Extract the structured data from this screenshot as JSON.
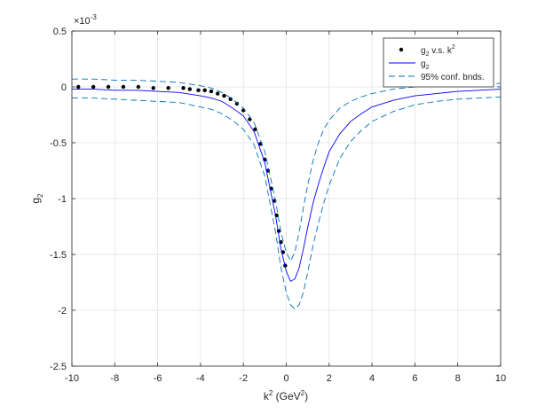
{
  "chart_data": {
    "type": "line",
    "xlabel_main": "k",
    "xlabel_sup": "2",
    "xlabel_rest": " (GeV",
    "xlabel_sup2": "2",
    "xlabel_close": ")",
    "ylabel_main": "g",
    "ylabel_sub": "2",
    "y_exponent_label": "×10",
    "y_exponent_power": "-3",
    "xlim": [
      -10,
      10
    ],
    "ylim": [
      -2.5,
      0.5
    ],
    "y_scale_factor": 0.001,
    "x_ticks": [
      -10,
      -8,
      -6,
      -4,
      -2,
      0,
      2,
      4,
      6,
      8,
      10
    ],
    "x_tick_labels": [
      "-10",
      "-8",
      "-6",
      "-4",
      "-2",
      "0",
      "2",
      "4",
      "6",
      "8",
      "10"
    ],
    "y_ticks": [
      -2.5,
      -2,
      -1.5,
      -1,
      -0.5,
      0,
      0.5
    ],
    "y_tick_labels": [
      "-2.5",
      "-2",
      "-1.5",
      "-1",
      "-0.5",
      "0",
      "0.5"
    ],
    "grid": true,
    "legend_placement": "top-right",
    "legend": [
      {
        "main": "g",
        "sub": "2",
        "rest": " v.s. k",
        "sup": "2",
        "marker": "dot",
        "color": "#000000"
      },
      {
        "main": "g",
        "sub": "2",
        "rest": "",
        "sup": "",
        "marker": "solid-line",
        "color": "#0000ff"
      },
      {
        "main": "95% conf. bnds.",
        "sub": "",
        "rest": "",
        "sup": "",
        "marker": "dashed-line",
        "color": "#0072bd"
      }
    ],
    "series": [
      {
        "kind": "points",
        "color": "#000000",
        "x": [
          -9.7,
          -9.0,
          -8.3,
          -7.6,
          -6.9,
          -6.2,
          -5.5,
          -4.8,
          -4.5,
          -4.1,
          -3.8,
          -3.5,
          -3.2,
          -2.9,
          -2.6,
          -2.3,
          -2.0,
          -1.7,
          -1.45,
          -1.2,
          -1.0,
          -0.85,
          -0.7,
          -0.55,
          -0.45,
          -0.35,
          -0.25,
          -0.15,
          -0.05
        ],
        "y": [
          0.0,
          0.0,
          0.0,
          0.0,
          0.0,
          -0.01,
          -0.01,
          -0.01,
          -0.02,
          -0.03,
          -0.03,
          -0.04,
          -0.06,
          -0.08,
          -0.11,
          -0.15,
          -0.21,
          -0.29,
          -0.38,
          -0.51,
          -0.65,
          -0.75,
          -0.91,
          -1.02,
          -1.15,
          -1.29,
          -1.39,
          -1.48,
          -1.6
        ]
      },
      {
        "kind": "fit",
        "color": "#0000ff",
        "x": [
          -10,
          -9,
          -8,
          -7,
          -6,
          -5,
          -4,
          -3.5,
          -3,
          -2.5,
          -2,
          -1.5,
          -1,
          -0.5,
          -0.25,
          0,
          0.2,
          0.4,
          0.6,
          0.8,
          1.0,
          1.25,
          1.5,
          1.75,
          2,
          2.5,
          3,
          3.5,
          4,
          5,
          6,
          7,
          8,
          9,
          10
        ],
        "y": [
          -0.02,
          -0.02,
          -0.03,
          -0.03,
          -0.04,
          -0.05,
          -0.08,
          -0.1,
          -0.13,
          -0.19,
          -0.26,
          -0.4,
          -0.68,
          -1.15,
          -1.45,
          -1.65,
          -1.74,
          -1.72,
          -1.62,
          -1.45,
          -1.26,
          -1.04,
          -0.87,
          -0.72,
          -0.58,
          -0.42,
          -0.31,
          -0.24,
          -0.18,
          -0.12,
          -0.08,
          -0.06,
          -0.04,
          -0.03,
          -0.02
        ]
      },
      {
        "kind": "bound",
        "color": "#0072bd",
        "x": [
          -10,
          -9,
          -8,
          -7,
          -6,
          -5,
          -4,
          -3.5,
          -3,
          -2.5,
          -2,
          -1.5,
          -1,
          -0.5,
          -0.25,
          0,
          0.2,
          0.4,
          0.6,
          0.8,
          1.0,
          1.25,
          1.5,
          1.75,
          2,
          2.5,
          3,
          3.5,
          4,
          5,
          6,
          7,
          8,
          9,
          10
        ],
        "y": [
          0.07,
          0.07,
          0.06,
          0.06,
          0.05,
          0.04,
          0.01,
          -0.01,
          -0.05,
          -0.11,
          -0.19,
          -0.32,
          -0.58,
          -1.02,
          -1.3,
          -1.48,
          -1.56,
          -1.48,
          -1.3,
          -1.08,
          -0.88,
          -0.66,
          -0.5,
          -0.38,
          -0.3,
          -0.19,
          -0.13,
          -0.09,
          -0.06,
          -0.02,
          0.0,
          0.01,
          0.02,
          0.03,
          0.03
        ]
      },
      {
        "kind": "bound",
        "color": "#0072bd",
        "x": [
          -10,
          -9,
          -8,
          -7,
          -6,
          -5,
          -4,
          -3.5,
          -3,
          -2.5,
          -2,
          -1.5,
          -1,
          -0.5,
          -0.25,
          0,
          0.2,
          0.4,
          0.6,
          0.8,
          1.0,
          1.25,
          1.5,
          1.75,
          2,
          2.5,
          3,
          3.5,
          4,
          5,
          6,
          7,
          8,
          9,
          10
        ],
        "y": [
          -0.1,
          -0.1,
          -0.11,
          -0.12,
          -0.13,
          -0.14,
          -0.18,
          -0.2,
          -0.24,
          -0.3,
          -0.38,
          -0.52,
          -0.8,
          -1.3,
          -1.62,
          -1.84,
          -1.95,
          -1.99,
          -1.95,
          -1.84,
          -1.66,
          -1.42,
          -1.22,
          -1.04,
          -0.88,
          -0.64,
          -0.49,
          -0.39,
          -0.31,
          -0.22,
          -0.16,
          -0.13,
          -0.11,
          -0.1,
          -0.09
        ]
      }
    ]
  }
}
